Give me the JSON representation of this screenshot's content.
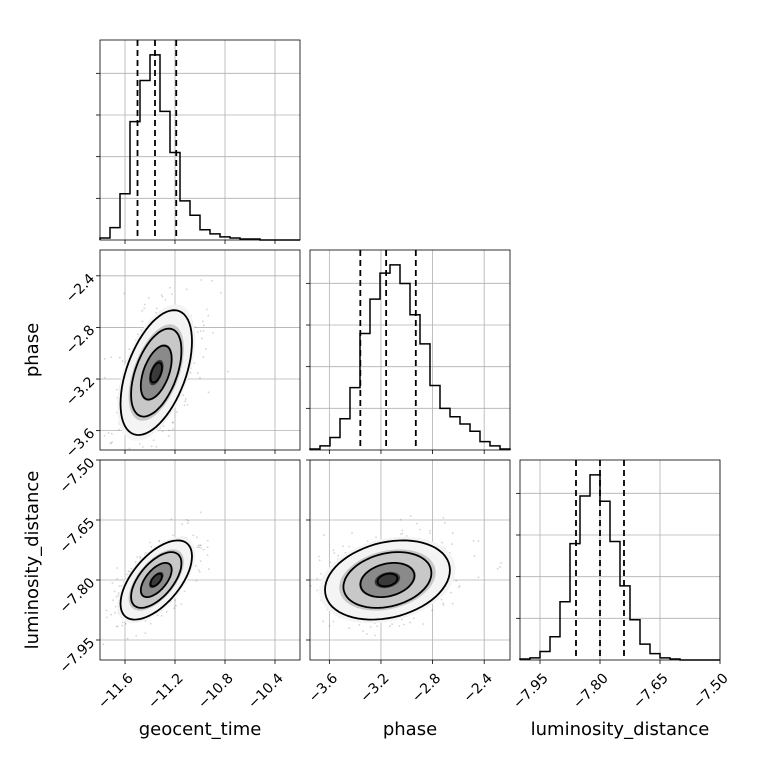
{
  "chart_data": {
    "type": "corner",
    "parameters": [
      {
        "name": "geocent_time",
        "label": "geocent_time",
        "range": [
          -11.8,
          -10.2
        ],
        "ticks": [
          -11.6,
          -11.2,
          -10.8,
          -10.4
        ],
        "tick_labels": [
          "−11.6",
          "−11.2",
          "−10.8",
          "−10.4"
        ],
        "quantiles": [
          -11.5,
          -11.36,
          -11.19
        ],
        "hist_edges": [
          -11.8,
          -11.72,
          -11.64,
          -11.56,
          -11.48,
          -11.4,
          -11.32,
          -11.24,
          -11.16,
          -11.08,
          -11.0,
          -10.92,
          -10.84,
          -10.76,
          -10.68,
          -10.6,
          -10.52,
          -10.44,
          -10.36,
          -10.28,
          -10.2
        ],
        "hist_counts": [
          2,
          12,
          45,
          115,
          155,
          180,
          125,
          85,
          38,
          24,
          10,
          6,
          3,
          2,
          1,
          1,
          0,
          0,
          0,
          0
        ]
      },
      {
        "name": "phase",
        "label": "phase",
        "range": [
          -3.75,
          -2.2
        ],
        "ticks": [
          -3.6,
          -3.2,
          -2.8,
          -2.4
        ],
        "tick_labels": [
          "−3.6",
          "−3.2",
          "−2.8",
          "−2.4"
        ],
        "quantiles": [
          -3.36,
          -3.16,
          -2.93
        ],
        "hist_edges": [
          -3.75,
          -3.6725,
          -3.595,
          -3.5175,
          -3.44,
          -3.3625,
          -3.285,
          -3.2075,
          -3.13,
          -3.0525,
          -2.975,
          -2.8975,
          -2.82,
          -2.7425,
          -2.665,
          -2.5875,
          -2.51,
          -2.4325,
          -2.355,
          -2.2775,
          -2.2
        ],
        "hist_counts": [
          1,
          4,
          12,
          30,
          60,
          112,
          145,
          170,
          178,
          160,
          130,
          102,
          62,
          40,
          32,
          25,
          18,
          8,
          4,
          1
        ]
      },
      {
        "name": "luminosity_distance",
        "label": "luminosity_distance",
        "range": [
          -8.0,
          -7.5
        ],
        "ticks": [
          -7.95,
          -7.8,
          -7.65,
          -7.5
        ],
        "tick_labels": [
          "−7.95",
          "−7.80",
          "−7.65",
          "−7.50"
        ],
        "quantiles": [
          -7.86,
          -7.8,
          -7.74
        ],
        "hist_edges": [
          -8.0,
          -7.975,
          -7.95,
          -7.925,
          -7.9,
          -7.875,
          -7.85,
          -7.825,
          -7.8,
          -7.775,
          -7.75,
          -7.725,
          -7.7,
          -7.675,
          -7.65,
          -7.625,
          -7.6,
          -7.575,
          -7.55,
          -7.525,
          -7.5
        ],
        "hist_counts": [
          1,
          2,
          8,
          22,
          55,
          110,
          155,
          175,
          150,
          112,
          70,
          38,
          15,
          6,
          2,
          1,
          0,
          0,
          0,
          0
        ]
      }
    ],
    "grid": true,
    "quantile_lines": "dashed",
    "contour_levels": 3
  }
}
